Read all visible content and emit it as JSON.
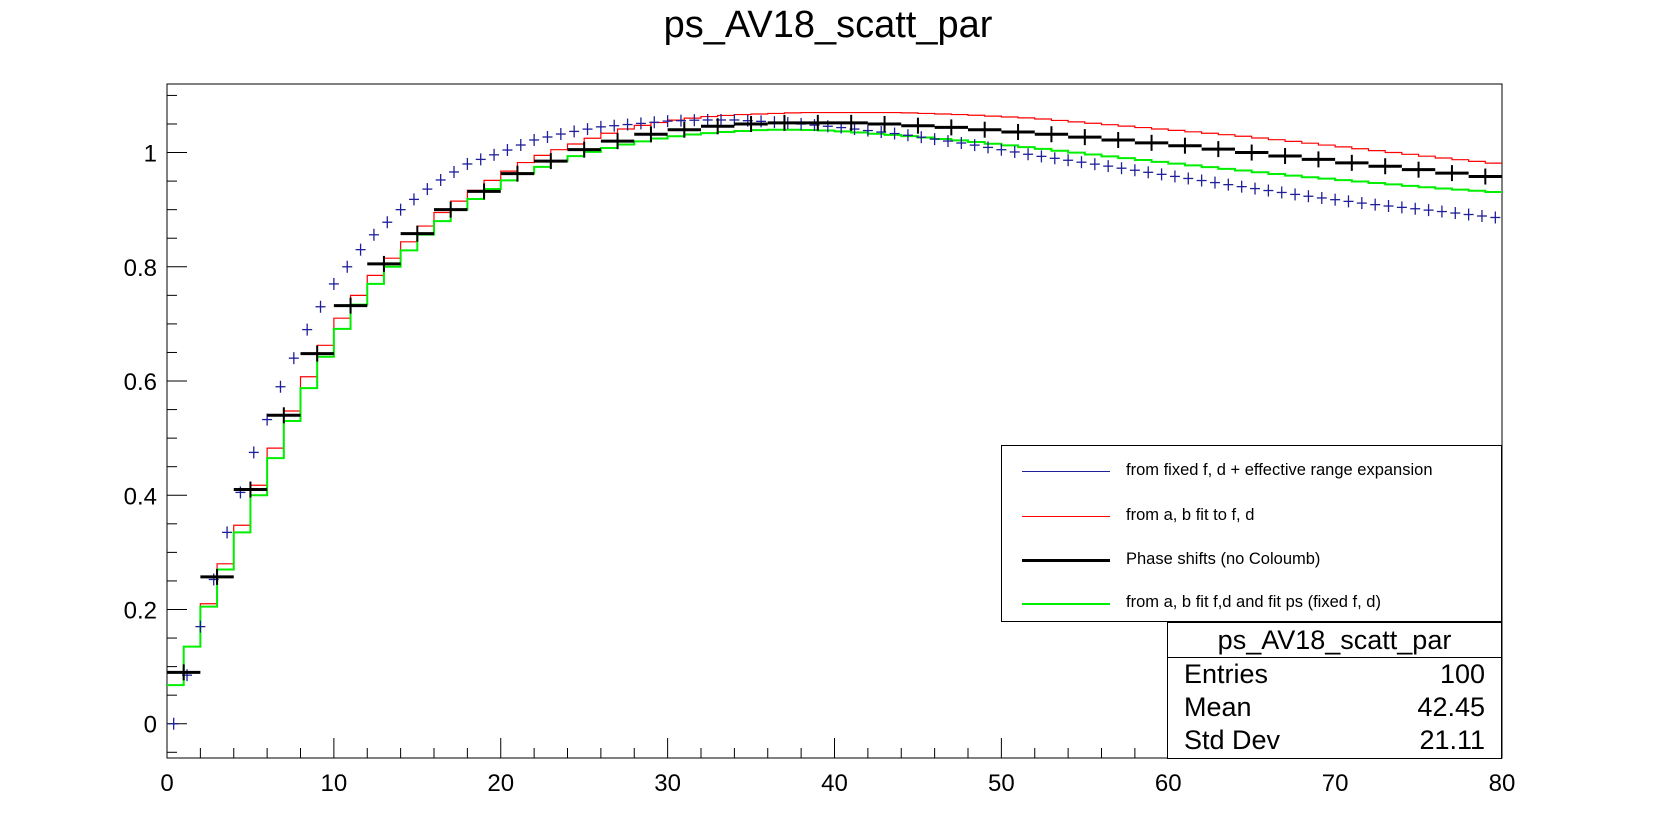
{
  "chart_data": {
    "type": "histogram",
    "title": "ps_AV18_scatt_par",
    "xlabel": "",
    "ylabel": "",
    "xlim": [
      0,
      80
    ],
    "ylim": [
      -0.06,
      1.12
    ],
    "x_ticks": [
      "0",
      "10",
      "20",
      "30",
      "40",
      "50",
      "60",
      "70",
      "80"
    ],
    "y_ticks": [
      "0",
      "0.2",
      "0.4",
      "0.6",
      "0.8",
      "1"
    ],
    "legend_position": "right",
    "series": [
      {
        "name": "from fixed f, d + effective range expansion",
        "style": "cross-markers",
        "color": "#1f1f99",
        "x_range": [
          0,
          80
        ],
        "points": [
          [
            0.4,
            0.0
          ],
          [
            2,
            0.17
          ],
          [
            3.6,
            0.335
          ],
          [
            5.2,
            0.475
          ],
          [
            6.8,
            0.59
          ],
          [
            8.4,
            0.69
          ],
          [
            10,
            0.77
          ],
          [
            12,
            0.845
          ],
          [
            14,
            0.9
          ],
          [
            16,
            0.945
          ],
          [
            18,
            0.98
          ],
          [
            20,
            1.0
          ],
          [
            22,
            1.022
          ],
          [
            24,
            1.035
          ],
          [
            26,
            1.045
          ],
          [
            28,
            1.05
          ],
          [
            30,
            1.055
          ],
          [
            32,
            1.057
          ],
          [
            34,
            1.057
          ],
          [
            36,
            1.054
          ],
          [
            38,
            1.05
          ],
          [
            40,
            1.045
          ],
          [
            44,
            1.032
          ],
          [
            48,
            1.015
          ],
          [
            52,
            0.995
          ],
          [
            56,
            0.978
          ],
          [
            60,
            0.96
          ],
          [
            64,
            0.942
          ],
          [
            68,
            0.925
          ],
          [
            72,
            0.91
          ],
          [
            76,
            0.898
          ],
          [
            80,
            0.885
          ]
        ]
      },
      {
        "name": "from a, b fit to f, d",
        "style": "step",
        "color": "#ff0000",
        "points": [
          [
            0,
            0.035
          ],
          [
            1,
            0.1
          ],
          [
            2,
            0.17
          ],
          [
            3,
            0.25
          ],
          [
            4,
            0.31
          ],
          [
            5,
            0.385
          ],
          [
            6,
            0.45
          ],
          [
            7,
            0.515
          ],
          [
            8,
            0.58
          ],
          [
            9,
            0.635
          ],
          [
            10,
            0.69
          ],
          [
            12,
            0.77
          ],
          [
            14,
            0.83
          ],
          [
            16,
            0.885
          ],
          [
            18,
            0.925
          ],
          [
            20,
            0.96
          ],
          [
            22,
            0.99
          ],
          [
            24,
            1.01
          ],
          [
            26,
            1.03
          ],
          [
            28,
            1.045
          ],
          [
            30,
            1.055
          ],
          [
            32,
            1.062
          ],
          [
            34,
            1.066
          ],
          [
            36,
            1.068
          ],
          [
            38,
            1.07
          ],
          [
            40,
            1.07
          ],
          [
            44,
            1.07
          ],
          [
            48,
            1.066
          ],
          [
            52,
            1.06
          ],
          [
            56,
            1.05
          ],
          [
            60,
            1.04
          ],
          [
            64,
            1.03
          ],
          [
            68,
            1.018
          ],
          [
            72,
            1.005
          ],
          [
            76,
            0.992
          ],
          [
            80,
            0.98
          ]
        ]
      },
      {
        "name": "Phase shifts (no Coloumb)",
        "style": "error-bars",
        "color": "#000000",
        "bin_width": 2,
        "points": [
          [
            1,
            0.09
          ],
          [
            3,
            0.257
          ],
          [
            5,
            0.41
          ],
          [
            7,
            0.54
          ],
          [
            9,
            0.648
          ],
          [
            11,
            0.732
          ],
          [
            13,
            0.805
          ],
          [
            15,
            0.858
          ],
          [
            17,
            0.9
          ],
          [
            19,
            0.932
          ],
          [
            21,
            0.963
          ],
          [
            23,
            0.985
          ],
          [
            25,
            1.005
          ],
          [
            27,
            1.02
          ],
          [
            29,
            1.032
          ],
          [
            31,
            1.04
          ],
          [
            33,
            1.046
          ],
          [
            35,
            1.05
          ],
          [
            37,
            1.052
          ],
          [
            39,
            1.052
          ],
          [
            41,
            1.052
          ],
          [
            43,
            1.05
          ],
          [
            45,
            1.047
          ],
          [
            47,
            1.044
          ],
          [
            49,
            1.04
          ],
          [
            51,
            1.036
          ],
          [
            53,
            1.032
          ],
          [
            55,
            1.027
          ],
          [
            57,
            1.022
          ],
          [
            59,
            1.017
          ],
          [
            61,
            1.012
          ],
          [
            63,
            1.006
          ],
          [
            65,
            1.0
          ],
          [
            67,
            0.994
          ],
          [
            69,
            0.988
          ],
          [
            71,
            0.982
          ],
          [
            73,
            0.976
          ],
          [
            75,
            0.97
          ],
          [
            77,
            0.964
          ],
          [
            79,
            0.958
          ]
        ]
      },
      {
        "name": "from a, b fit f,d and fit ps (fixed f, d)",
        "style": "step",
        "color": "#00ee00",
        "points": [
          [
            0,
            0.035
          ],
          [
            1,
            0.1
          ],
          [
            2,
            0.17
          ],
          [
            3,
            0.24
          ],
          [
            4,
            0.3
          ],
          [
            5,
            0.37
          ],
          [
            6,
            0.43
          ],
          [
            7,
            0.5
          ],
          [
            8,
            0.56
          ],
          [
            9,
            0.615
          ],
          [
            10,
            0.67
          ],
          [
            12,
            0.755
          ],
          [
            14,
            0.815
          ],
          [
            16,
            0.87
          ],
          [
            18,
            0.91
          ],
          [
            20,
            0.945
          ],
          [
            22,
            0.97
          ],
          [
            24,
            0.99
          ],
          [
            26,
            1.005
          ],
          [
            28,
            1.017
          ],
          [
            30,
            1.027
          ],
          [
            32,
            1.033
          ],
          [
            34,
            1.037
          ],
          [
            36,
            1.04
          ],
          [
            38,
            1.04
          ],
          [
            40,
            1.038
          ],
          [
            44,
            1.03
          ],
          [
            48,
            1.02
          ],
          [
            52,
            1.008
          ],
          [
            56,
            0.995
          ],
          [
            60,
            0.982
          ],
          [
            64,
            0.97
          ],
          [
            68,
            0.958
          ],
          [
            72,
            0.948
          ],
          [
            76,
            0.938
          ],
          [
            80,
            0.93
          ]
        ]
      }
    ],
    "stats_box": {
      "title": "ps_AV18_scatt_par",
      "rows": [
        {
          "name": "Entries",
          "value": "100"
        },
        {
          "name": "Mean",
          "value": "42.45"
        },
        {
          "name": "Std Dev",
          "value": "21.11"
        }
      ]
    }
  }
}
